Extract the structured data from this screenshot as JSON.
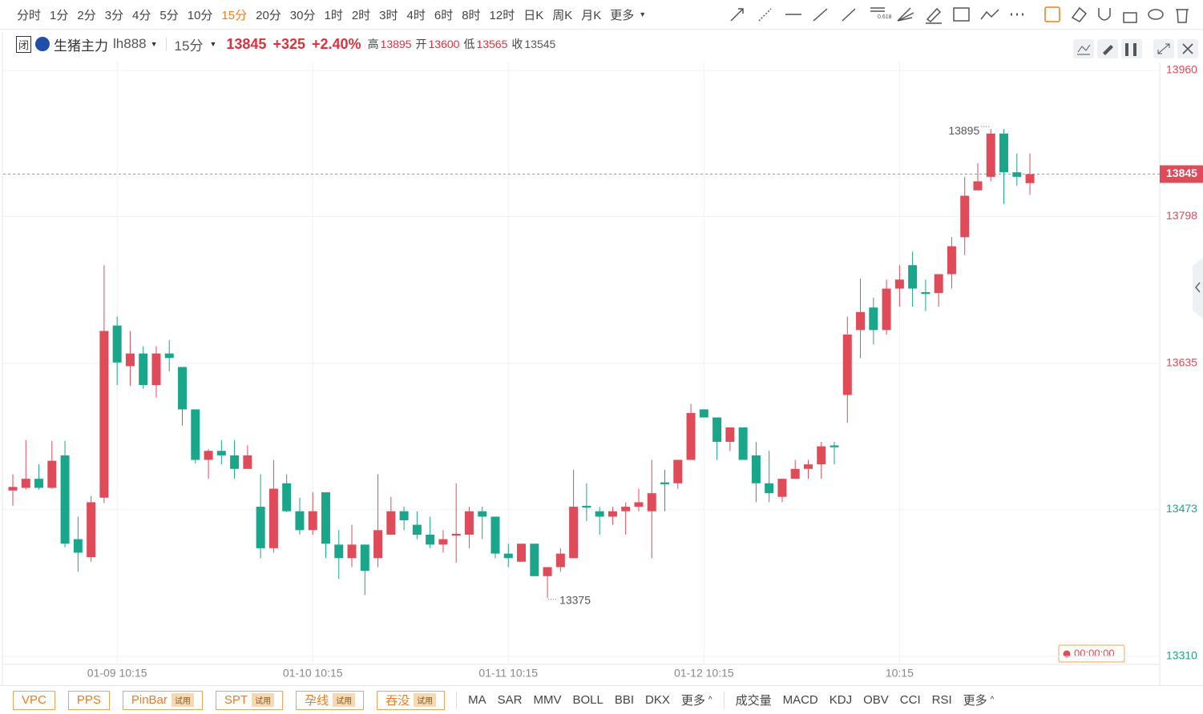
{
  "toolbar": {
    "periods": [
      "分时",
      "1分",
      "2分",
      "3分",
      "4分",
      "5分",
      "10分",
      "15分",
      "20分",
      "30分",
      "1时",
      "2时",
      "3时",
      "4时",
      "6时",
      "8时",
      "12时",
      "日K",
      "周K",
      "月K"
    ],
    "active": 7,
    "more": "更多",
    "fib_label": "0.618"
  },
  "header": {
    "badge": "闭",
    "symbol": "生猪主力",
    "code": "lh888",
    "period": "15分",
    "price": "13845",
    "change": "+325",
    "percent": "+2.40%",
    "stats": [
      {
        "label": "高",
        "value": "13895"
      },
      {
        "label": "开",
        "value": "13600"
      },
      {
        "label": "低",
        "value": "13565"
      },
      {
        "label": "收",
        "value": "13545"
      }
    ]
  },
  "timer": "00:00:00",
  "bottom": {
    "patterns": [
      {
        "text": "VPC"
      },
      {
        "text": "PPS"
      },
      {
        "text": "PinBar",
        "tag": "试用"
      },
      {
        "text": "SPT",
        "tag": "试用"
      },
      {
        "text": "孕线",
        "tag": "试用"
      },
      {
        "text": "吞没",
        "tag": "试用"
      }
    ],
    "main_indicators": [
      "MA",
      "SAR",
      "MMV",
      "BOLL",
      "BBI",
      "DKX"
    ],
    "main_more": "更多",
    "sub_indicators": [
      "成交量",
      "MACD",
      "KDJ",
      "OBV",
      "CCI",
      "RSI"
    ],
    "sub_more": "更多"
  },
  "chart_data": {
    "type": "candlestick",
    "categories": [
      null,
      null,
      null,
      null,
      null,
      null,
      null,
      null,
      "01-09 10:15",
      null,
      null,
      null,
      null,
      null,
      null,
      null,
      null,
      null,
      null,
      null,
      null,
      null,
      null,
      "01-10 10:15",
      null,
      null,
      null,
      null,
      null,
      null,
      null,
      null,
      null,
      null,
      null,
      null,
      null,
      null,
      "01-11 10:15",
      null,
      null,
      null,
      null,
      null,
      null,
      null,
      null,
      null,
      null,
      null,
      null,
      null,
      null,
      "01-12 10:15",
      null,
      null,
      null,
      null,
      null,
      null,
      null,
      null,
      null,
      null,
      null,
      null,
      null,
      null,
      "10:15",
      null,
      null,
      null,
      null,
      null,
      null,
      null,
      null,
      null,
      null
    ],
    "open": [
      13494,
      13497,
      13507,
      13497,
      13533,
      13440,
      13420,
      13486,
      13677,
      13632,
      13646,
      13611,
      13646,
      13631,
      13584,
      13528,
      13538,
      13533,
      13518,
      13476,
      13430,
      13502,
      13471,
      13450,
      13492,
      13434,
      13419,
      13434,
      13419,
      13445,
      13471,
      13456,
      13445,
      13434,
      13444,
      13445,
      13471,
      13465,
      13424,
      13415,
      13435,
      13399,
      13409,
      13419,
      13477,
      13471,
      13465,
      13471,
      13476,
      13471,
      13503,
      13502,
      13528,
      13584,
      13575,
      13548,
      13564,
      13533,
      13502,
      13487,
      13507,
      13518,
      13523,
      13544,
      13600,
      13672,
      13697,
      13672,
      13718,
      13744,
      13714,
      13713,
      13734,
      13775,
      13827,
      13842,
      13890,
      13847,
      13835
    ],
    "high": [
      13512,
      13550,
      13523,
      13549,
      13549,
      13465,
      13488,
      13744,
      13687,
      13671,
      13654,
      13654,
      13661,
      13631,
      13584,
      13540,
      13550,
      13550,
      13544,
      13512,
      13528,
      13512,
      13486,
      13492,
      13492,
      13450,
      13456,
      13434,
      13512,
      13487,
      13476,
      13471,
      13465,
      13450,
      13502,
      13476,
      13476,
      13465,
      13435,
      13435,
      13435,
      13409,
      13430,
      13517,
      13502,
      13476,
      13476,
      13481,
      13496,
      13528,
      13517,
      13528,
      13590,
      13584,
      13575,
      13564,
      13564,
      13548,
      13538,
      13507,
      13528,
      13528,
      13548,
      13548,
      13687,
      13729,
      13708,
      13728,
      13744,
      13759,
      13728,
      13734,
      13775,
      13842,
      13857,
      13895,
      13895,
      13868,
      13868
    ],
    "low": [
      13477,
      13495,
      13495,
      13496,
      13431,
      13404,
      13415,
      13480,
      13611,
      13610,
      13607,
      13597,
      13626,
      13566,
      13524,
      13507,
      13523,
      13507,
      13518,
      13419,
      13425,
      13470,
      13445,
      13445,
      13419,
      13396,
      13409,
      13378,
      13409,
      13445,
      13450,
      13440,
      13430,
      13425,
      13414,
      13430,
      13440,
      13419,
      13409,
      13415,
      13399,
      13375,
      13404,
      13419,
      13460,
      13445,
      13456,
      13445,
      13471,
      13419,
      13471,
      13496,
      13528,
      13575,
      13528,
      13538,
      13528,
      13481,
      13481,
      13481,
      13507,
      13507,
      13507,
      13523,
      13569,
      13641,
      13656,
      13667,
      13698,
      13698,
      13693,
      13698,
      13718,
      13755,
      13827,
      13837,
      13812,
      13832,
      13822
    ],
    "close": [
      13498,
      13507,
      13497,
      13527,
      13435,
      13425,
      13481,
      13671,
      13636,
      13646,
      13611,
      13646,
      13641,
      13584,
      13528,
      13538,
      13533,
      13518,
      13533,
      13430,
      13496,
      13471,
      13450,
      13471,
      13435,
      13419,
      13434,
      13405,
      13450,
      13471,
      13461,
      13445,
      13434,
      13440,
      13446,
      13471,
      13465,
      13424,
      13419,
      13435,
      13399,
      13409,
      13424,
      13476,
      13475,
      13465,
      13471,
      13476,
      13481,
      13491,
      13501,
      13528,
      13580,
      13575,
      13548,
      13564,
      13528,
      13502,
      13491,
      13507,
      13518,
      13523,
      13543,
      13542,
      13667,
      13692,
      13672,
      13718,
      13728,
      13718,
      13712,
      13734,
      13765,
      13821,
      13837,
      13890,
      13847,
      13842,
      13845
    ],
    "ylim": [
      13310,
      13960
    ],
    "yticks": [
      13960,
      13798,
      13635,
      13473,
      13310
    ],
    "ytick_colors": [
      "#e04b5a",
      "#e04b5a",
      "#e04b5a",
      "#1aa68a",
      "#1aa68a"
    ],
    "up_color": "#e04b5a",
    "down_color": "#1aa68a",
    "grid": true
  }
}
